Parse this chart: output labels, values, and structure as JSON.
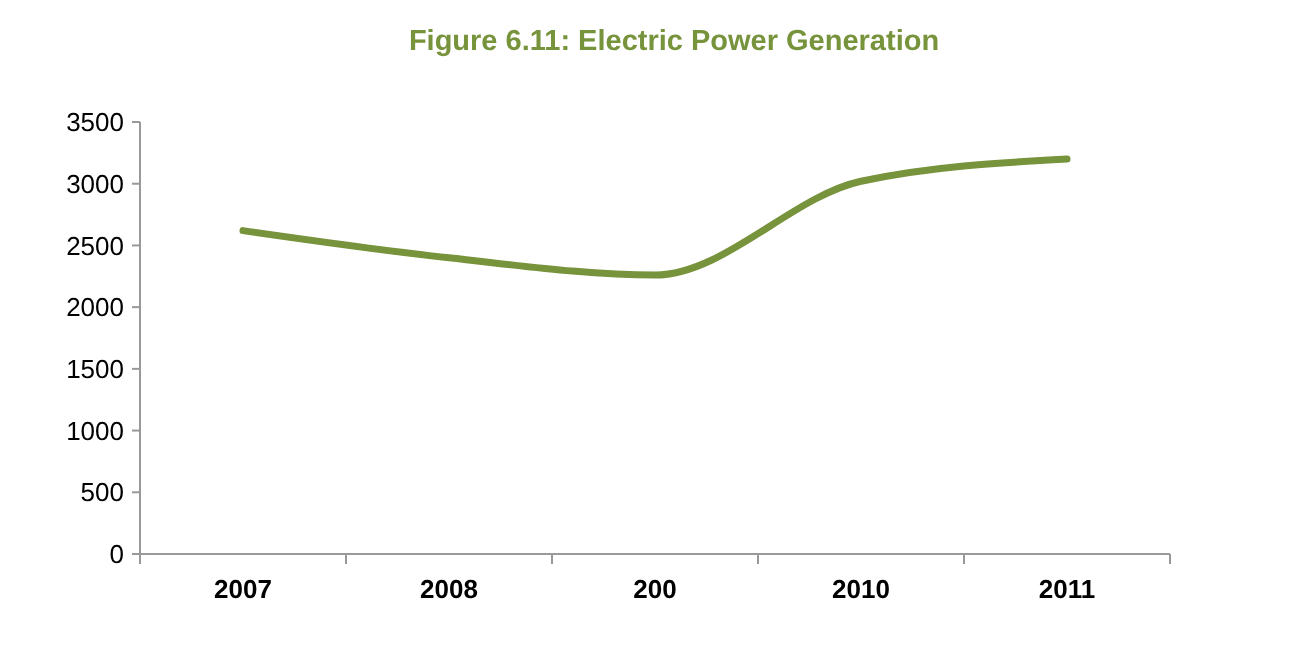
{
  "chart_data": {
    "type": "line",
    "title": "Figure 6.11: Electric Power Generation",
    "categories": [
      "2007",
      "2008",
      "200",
      "2010",
      "2011"
    ],
    "series": [
      {
        "color": "#77933c",
        "values": [
          2620,
          2400,
          2260,
          3020,
          3200
        ]
      }
    ],
    "ylim": [
      0,
      3500
    ],
    "yticks": [
      0,
      500,
      1000,
      1500,
      2000,
      2500,
      3000,
      3500
    ],
    "grid": false,
    "marker": "none",
    "line_style": "solid"
  }
}
